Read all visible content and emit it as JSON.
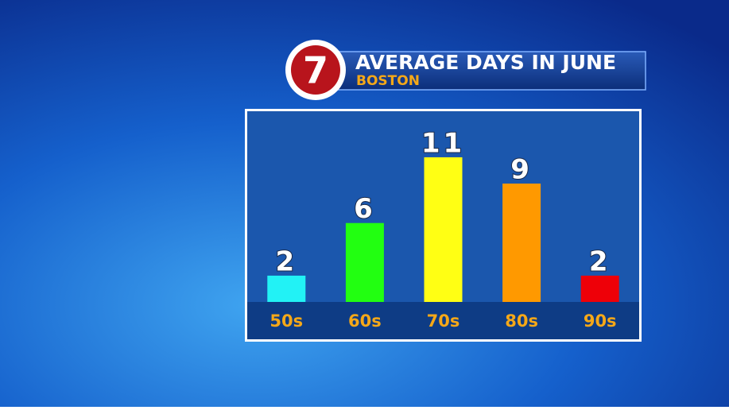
{
  "logo": "7",
  "chart_data": {
    "type": "bar",
    "title": "AVERAGE DAYS IN JUNE",
    "subtitle": "BOSTON",
    "categories": [
      "50s",
      "60s",
      "70s",
      "80s",
      "90s"
    ],
    "values": [
      2,
      6,
      11,
      9,
      2
    ],
    "colors": [
      "#22f2f5",
      "#22ff11",
      "#ffff14",
      "#ff9900",
      "#ee0008"
    ]
  }
}
